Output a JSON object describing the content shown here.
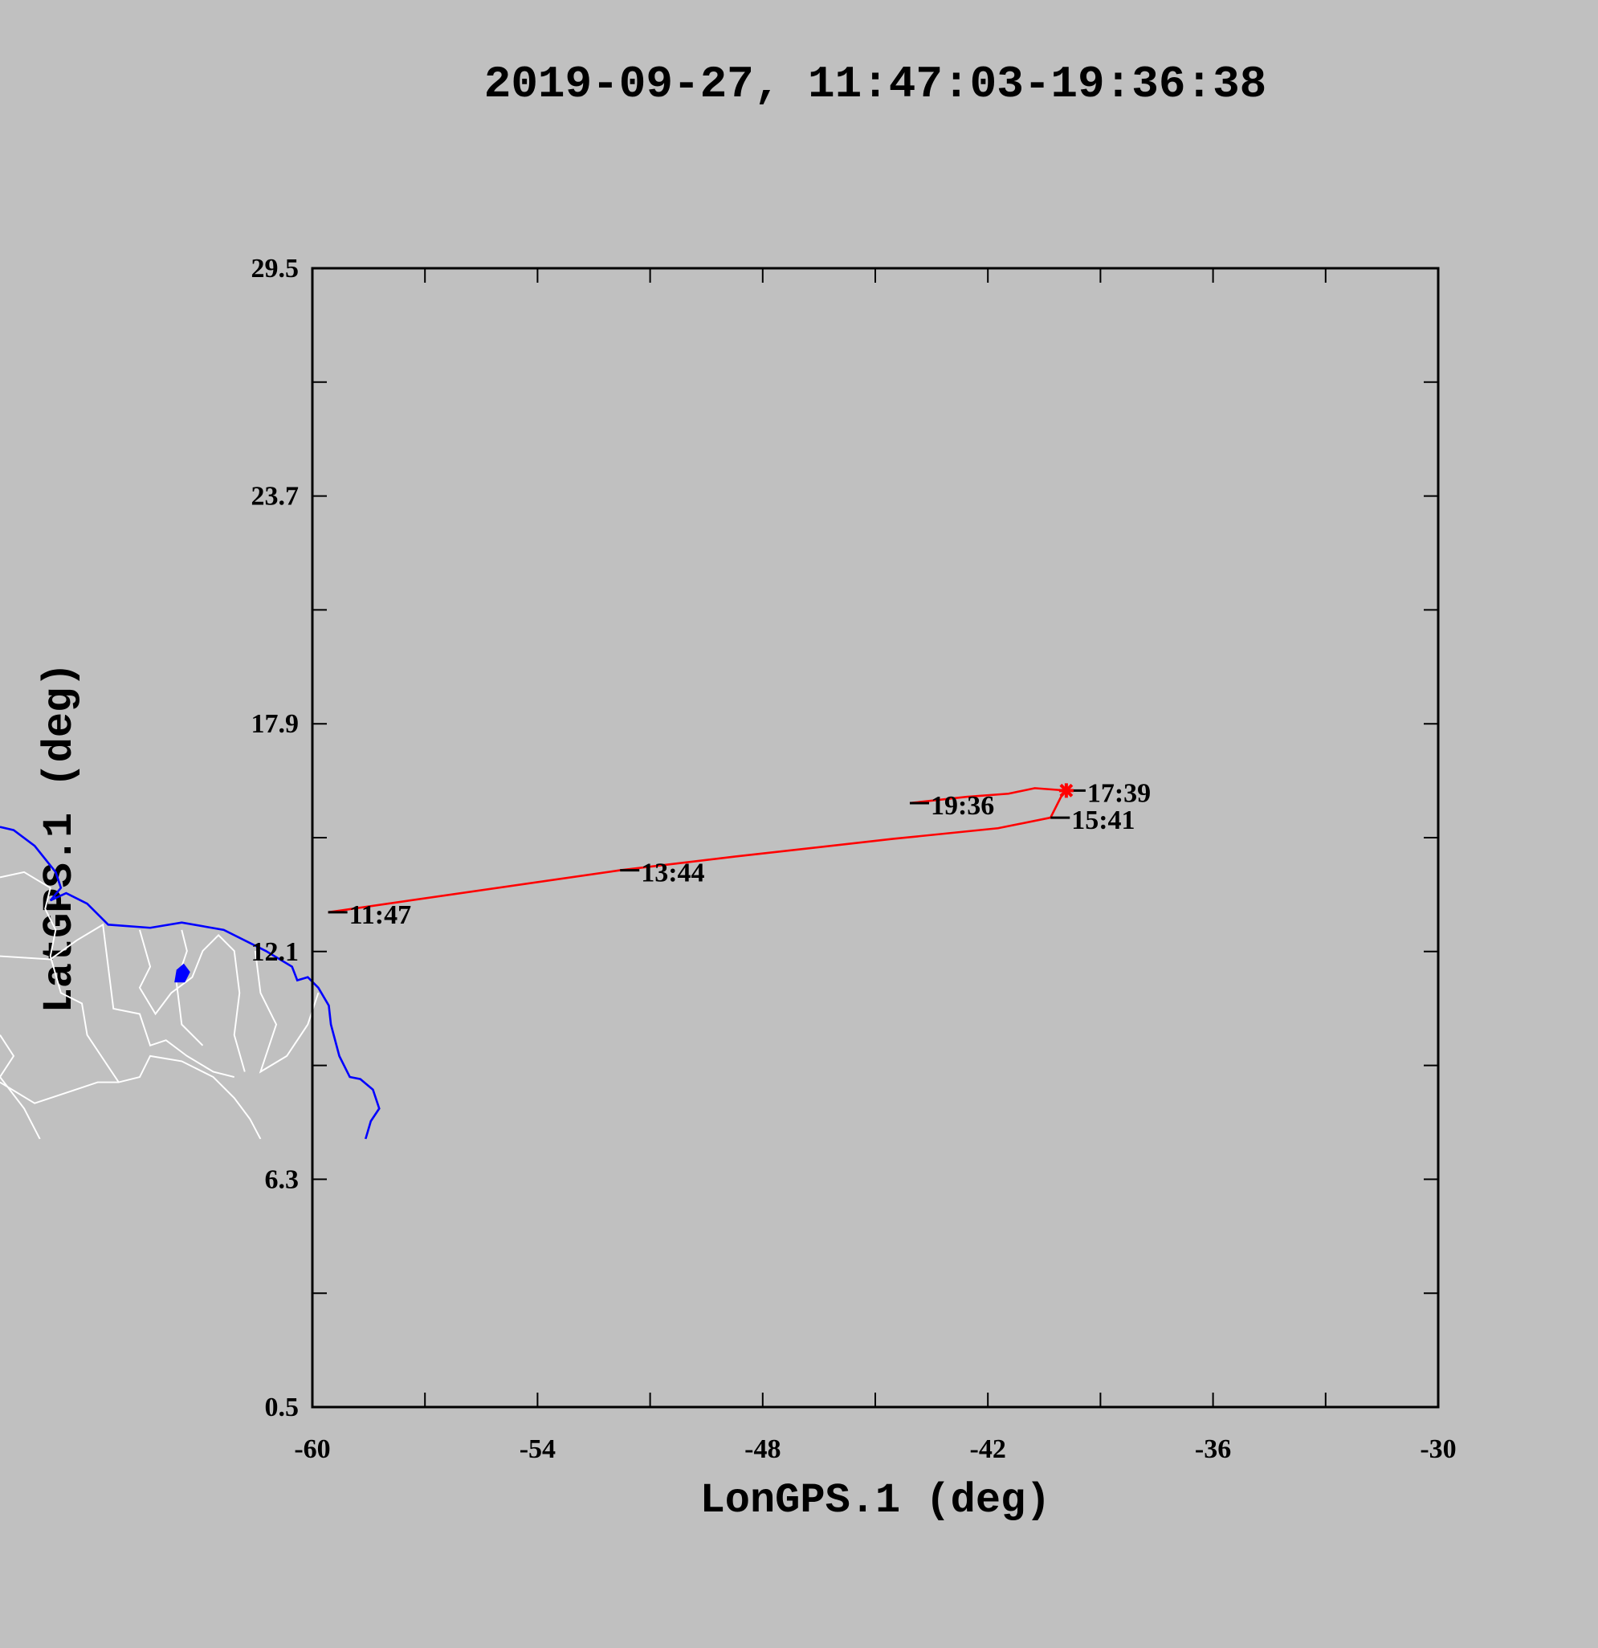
{
  "chart_data": {
    "type": "line",
    "title": "2019-09-27, 11:47:03-19:36:38",
    "x_label": "LonGPS.1 (deg)",
    "y_label": "LatGPS.1 (deg)",
    "xlim": [
      -60,
      -30
    ],
    "xticks": [
      -60,
      -54,
      -48,
      -42,
      -36,
      -30
    ],
    "ylim": [
      0.5,
      29.5
    ],
    "yticks": [
      0.5,
      6.3,
      12.1,
      17.9,
      23.7,
      29.5
    ],
    "series": [
      {
        "color": "#ff0000",
        "x": [
          -59.58,
          -51.8,
          -48.72,
          -44.52,
          -41.73,
          -40.33,
          -40.05,
          -39.91,
          -40.75,
          -41.45,
          -42.57,
          -44.08
        ],
        "values": [
          13.1,
          14.17,
          14.52,
          14.97,
          15.24,
          15.51,
          16.04,
          16.2,
          16.26,
          16.12,
          16.04,
          15.88
        ]
      }
    ],
    "annotations": [
      {
        "text": "11:47",
        "x": -59.58,
        "y": 13.1
      },
      {
        "text": "13:44",
        "x": -51.8,
        "y": 14.17
      },
      {
        "text": "15:41",
        "x": -40.33,
        "y": 15.51
      },
      {
        "text": "17:39",
        "x": -39.91,
        "y": 16.2
      },
      {
        "text": "19:36",
        "x": -44.08,
        "y": 15.88
      }
    ]
  }
}
